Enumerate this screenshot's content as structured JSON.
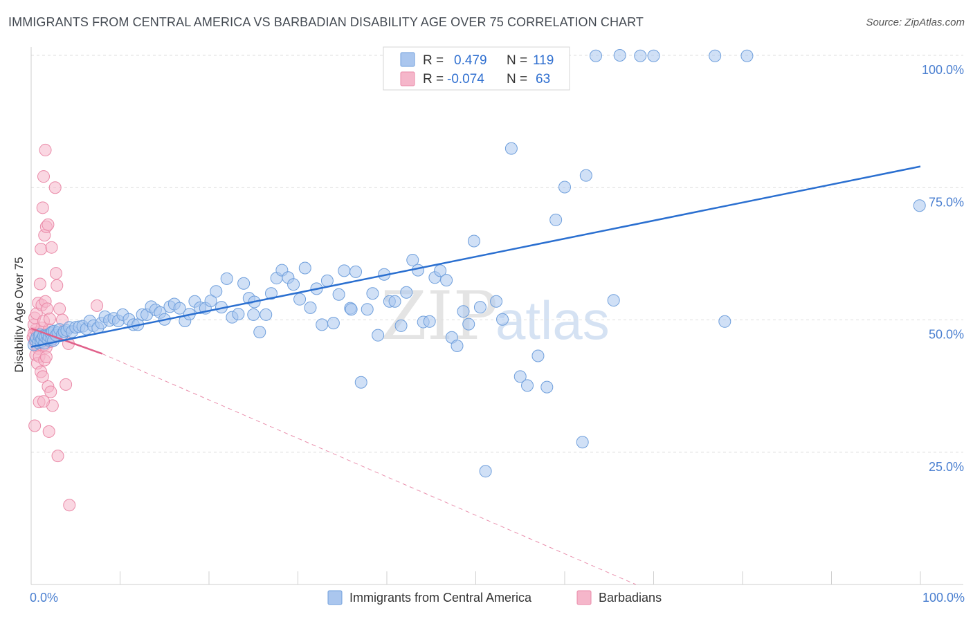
{
  "header": {
    "title": "IMMIGRANTS FROM CENTRAL AMERICA VS BARBADIAN DISABILITY AGE OVER 75 CORRELATION CHART",
    "source": "Source: ZipAtlas.com"
  },
  "watermark": {
    "zip": "ZIP",
    "atlas": "atlas"
  },
  "colors": {
    "blue_fill": "#aac6ee",
    "blue_stroke": "#6f9fdc",
    "blue_line": "#2a6fd0",
    "pink_fill": "#f5b6ca",
    "pink_stroke": "#ea8aa8",
    "pink_line": "#e0608a",
    "grid": "#dcdcdc",
    "tick_text": "#4a7fd0"
  },
  "legend": {
    "rows": [
      {
        "r_label": "R =",
        "r_value": "0.479",
        "n_label": "N =",
        "n_value": "119"
      },
      {
        "r_label": "R =",
        "r_value": "-0.074",
        "n_label": "N =",
        "n_value": "63"
      }
    ]
  },
  "chart_data": {
    "type": "scatter",
    "title": "IMMIGRANTS FROM CENTRAL AMERICA VS BARBADIAN DISABILITY AGE OVER 75 CORRELATION CHART",
    "xlabel": "",
    "ylabel": "Disability Age Over 75",
    "xlim": [
      0,
      100
    ],
    "ylim": [
      0,
      100
    ],
    "x_tick_labels": [
      "0.0%",
      "100.0%"
    ],
    "y_ticks": [
      25,
      50,
      75,
      100
    ],
    "y_tick_labels": [
      "25.0%",
      "50.0%",
      "75.0%",
      "100.0%"
    ],
    "legend_position": "top-center",
    "series": [
      {
        "name": "Immigrants from Central America",
        "color": "#aac6ee",
        "R": 0.479,
        "N": 119,
        "trend": {
          "x": [
            0,
            100
          ],
          "y": [
            44.9,
            79.0
          ]
        },
        "points": [
          [
            0.3,
            45.3
          ],
          [
            0.5,
            46.1
          ],
          [
            0.6,
            46.6
          ],
          [
            0.8,
            45.7
          ],
          [
            0.9,
            46.9
          ],
          [
            1.0,
            47.2
          ],
          [
            1.1,
            45.9
          ],
          [
            1.2,
            46.4
          ],
          [
            1.4,
            47.0
          ],
          [
            1.5,
            45.6
          ],
          [
            1.6,
            46.8
          ],
          [
            1.8,
            47.1
          ],
          [
            1.9,
            46.2
          ],
          [
            2.0,
            46.9
          ],
          [
            2.2,
            47.5
          ],
          [
            2.3,
            46.3
          ],
          [
            2.4,
            47.8
          ],
          [
            2.5,
            46.1
          ],
          [
            2.6,
            47.9
          ],
          [
            2.8,
            47.1
          ],
          [
            3.0,
            47.6
          ],
          [
            3.2,
            48.2
          ],
          [
            3.5,
            47.2
          ],
          [
            3.7,
            47.8
          ],
          [
            4.0,
            48.0
          ],
          [
            4.3,
            48.6
          ],
          [
            4.6,
            47.8
          ],
          [
            5.0,
            48.6
          ],
          [
            5.4,
            48.7
          ],
          [
            5.8,
            48.8
          ],
          [
            6.2,
            48.3
          ],
          [
            6.6,
            49.8
          ],
          [
            7.0,
            48.9
          ],
          [
            7.5,
            48.5
          ],
          [
            7.9,
            49.4
          ],
          [
            8.3,
            50.6
          ],
          [
            8.8,
            49.9
          ],
          [
            9.3,
            50.3
          ],
          [
            9.8,
            49.8
          ],
          [
            10.3,
            51.0
          ],
          [
            11.0,
            50.1
          ],
          [
            11.5,
            49.1
          ],
          [
            12.0,
            49.1
          ],
          [
            12.5,
            51.0
          ],
          [
            13.0,
            51.0
          ],
          [
            13.5,
            52.5
          ],
          [
            14.0,
            51.9
          ],
          [
            14.5,
            51.4
          ],
          [
            15.0,
            50.1
          ],
          [
            15.6,
            52.5
          ],
          [
            16.1,
            53.0
          ],
          [
            16.7,
            52.2
          ],
          [
            17.3,
            49.8
          ],
          [
            17.8,
            51.1
          ],
          [
            18.4,
            53.5
          ],
          [
            19.0,
            52.3
          ],
          [
            19.6,
            52.2
          ],
          [
            20.2,
            53.6
          ],
          [
            20.8,
            55.4
          ],
          [
            21.4,
            52.4
          ],
          [
            22.0,
            57.8
          ],
          [
            22.6,
            50.5
          ],
          [
            23.3,
            51.1
          ],
          [
            23.9,
            56.9
          ],
          [
            24.5,
            54.1
          ],
          [
            25.1,
            53.4
          ],
          [
            25.7,
            47.7
          ],
          [
            26.4,
            51.0
          ],
          [
            27.0,
            55.0
          ],
          [
            27.6,
            57.9
          ],
          [
            28.2,
            59.4
          ],
          [
            28.9,
            58.0
          ],
          [
            29.5,
            56.7
          ],
          [
            30.2,
            53.9
          ],
          [
            30.8,
            59.8
          ],
          [
            31.4,
            52.3
          ],
          [
            32.1,
            55.9
          ],
          [
            32.7,
            49.1
          ],
          [
            33.3,
            57.4
          ],
          [
            34.0,
            49.4
          ],
          [
            34.6,
            54.8
          ],
          [
            35.2,
            59.3
          ],
          [
            35.9,
            52.2
          ],
          [
            36.5,
            59.1
          ],
          [
            37.1,
            38.2
          ],
          [
            37.8,
            52.0
          ],
          [
            38.4,
            55.0
          ],
          [
            39.0,
            47.1
          ],
          [
            39.7,
            58.6
          ],
          [
            40.3,
            53.5
          ],
          [
            40.9,
            53.5
          ],
          [
            41.6,
            48.9
          ],
          [
            42.2,
            55.2
          ],
          [
            42.9,
            61.3
          ],
          [
            43.5,
            59.4
          ],
          [
            44.1,
            49.6
          ],
          [
            44.8,
            49.7
          ],
          [
            45.4,
            58.0
          ],
          [
            46.0,
            59.3
          ],
          [
            46.7,
            57.5
          ],
          [
            47.3,
            46.7
          ],
          [
            47.9,
            45.1
          ],
          [
            48.6,
            51.6
          ],
          [
            49.2,
            49.2
          ],
          [
            49.8,
            64.9
          ],
          [
            50.5,
            52.4
          ],
          [
            51.1,
            21.4
          ],
          [
            52.3,
            53.5
          ],
          [
            53.0,
            50.1
          ],
          [
            54.0,
            82.4
          ],
          [
            55.0,
            39.3
          ],
          [
            55.8,
            37.6
          ],
          [
            57.0,
            43.2
          ],
          [
            58.0,
            37.3
          ],
          [
            59.0,
            68.9
          ],
          [
            60.0,
            75.1
          ],
          [
            62.0,
            26.9
          ],
          [
            62.4,
            77.3
          ],
          [
            63.5,
            99.9
          ],
          [
            65.5,
            53.7
          ],
          [
            66.2,
            100.0
          ],
          [
            68.5,
            99.9
          ],
          [
            70.0,
            99.9
          ],
          [
            76.9,
            99.9
          ],
          [
            78.0,
            49.7
          ],
          [
            80.5,
            99.9
          ],
          [
            99.9,
            71.6
          ],
          [
            36.0,
            52.0
          ],
          [
            25.0,
            51.0
          ]
        ]
      },
      {
        "name": "Barbadians",
        "color": "#f5b6ca",
        "R": -0.074,
        "N": 63,
        "trend_solid": {
          "x": [
            0,
            8
          ],
          "y": [
            48.4,
            43.6
          ]
        },
        "trend_dashed": {
          "x": [
            8,
            68
          ],
          "y": [
            43.6,
            0
          ]
        },
        "points": [
          [
            0.2,
            46.7
          ],
          [
            0.3,
            47.5
          ],
          [
            0.4,
            46.0
          ],
          [
            0.5,
            48.1
          ],
          [
            0.6,
            45.1
          ],
          [
            0.7,
            47.2
          ],
          [
            0.8,
            44.6
          ],
          [
            0.9,
            46.4
          ],
          [
            1.0,
            47.8
          ],
          [
            1.1,
            45.7
          ],
          [
            1.2,
            48.5
          ],
          [
            1.3,
            46.2
          ],
          [
            1.4,
            47.1
          ],
          [
            1.5,
            45.3
          ],
          [
            1.6,
            46.9
          ],
          [
            1.7,
            44.8
          ],
          [
            1.8,
            47.4
          ],
          [
            1.9,
            46.1
          ],
          [
            2.0,
            48.2
          ],
          [
            2.2,
            45.9
          ],
          [
            0.3,
            49.1
          ],
          [
            0.4,
            50.4
          ],
          [
            0.6,
            51.2
          ],
          [
            0.8,
            53.2
          ],
          [
            1.0,
            56.8
          ],
          [
            1.2,
            52.8
          ],
          [
            1.4,
            49.8
          ],
          [
            1.6,
            53.5
          ],
          [
            1.8,
            52.1
          ],
          [
            2.1,
            50.2
          ],
          [
            0.5,
            43.4
          ],
          [
            0.7,
            41.8
          ],
          [
            0.9,
            43.1
          ],
          [
            1.1,
            40.2
          ],
          [
            1.3,
            39.3
          ],
          [
            1.5,
            42.4
          ],
          [
            1.7,
            43.0
          ],
          [
            1.9,
            37.4
          ],
          [
            2.2,
            36.4
          ],
          [
            2.4,
            33.8
          ],
          [
            0.4,
            30.0
          ],
          [
            0.9,
            34.5
          ],
          [
            1.4,
            34.6
          ],
          [
            2.0,
            28.9
          ],
          [
            3.0,
            24.3
          ],
          [
            4.3,
            15.0
          ],
          [
            1.1,
            63.4
          ],
          [
            1.5,
            66.0
          ],
          [
            1.7,
            67.6
          ],
          [
            2.3,
            63.7
          ],
          [
            1.3,
            71.2
          ],
          [
            2.7,
            75.0
          ],
          [
            1.4,
            77.1
          ],
          [
            1.6,
            82.1
          ],
          [
            2.8,
            58.8
          ],
          [
            2.9,
            56.5
          ],
          [
            3.2,
            52.1
          ],
          [
            3.5,
            50.0
          ],
          [
            3.6,
            47.8
          ],
          [
            4.2,
            45.5
          ],
          [
            1.9,
            68.0
          ],
          [
            7.4,
            52.7
          ],
          [
            3.9,
            37.8
          ]
        ]
      }
    ]
  },
  "bottom_legend": {
    "items": [
      {
        "label": "Immigrants from Central America"
      },
      {
        "label": "Barbadians"
      }
    ]
  }
}
